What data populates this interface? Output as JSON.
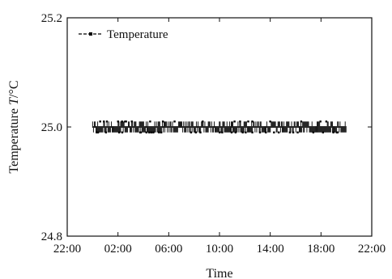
{
  "chart_data": {
    "type": "line",
    "title": "",
    "xlabel": "Time",
    "ylabel_prefix": "Temperature ",
    "ylabel_var": "T",
    "ylabel_suffix": "/°C",
    "x_unit": "hours elapsed since 22:00",
    "xlim": [
      0,
      24
    ],
    "ylim": [
      24.8,
      25.2
    ],
    "x_ticks": [
      {
        "value": 0,
        "label": "22:00"
      },
      {
        "value": 4,
        "label": "02:00"
      },
      {
        "value": 8,
        "label": "06:00"
      },
      {
        "value": 12,
        "label": "10:00"
      },
      {
        "value": 16,
        "label": "14:00"
      },
      {
        "value": 20,
        "label": "18:00"
      },
      {
        "value": 24,
        "label": "22:00"
      }
    ],
    "y_ticks": [
      {
        "value": 25.2,
        "label": "25.2"
      },
      {
        "value": 25.0,
        "label": "25.0"
      },
      {
        "value": 24.8,
        "label": "24.8"
      }
    ],
    "grid": false,
    "legend_position": "top-left",
    "series": [
      {
        "name": "Temperature",
        "color": "#000000",
        "x_range": [
          2,
          22
        ],
        "y_low": 24.99,
        "y_high": 25.01,
        "description": "Temperature oscillating between 24.99 and 25.01 °C from about 00:00 to 20:00"
      }
    ]
  }
}
